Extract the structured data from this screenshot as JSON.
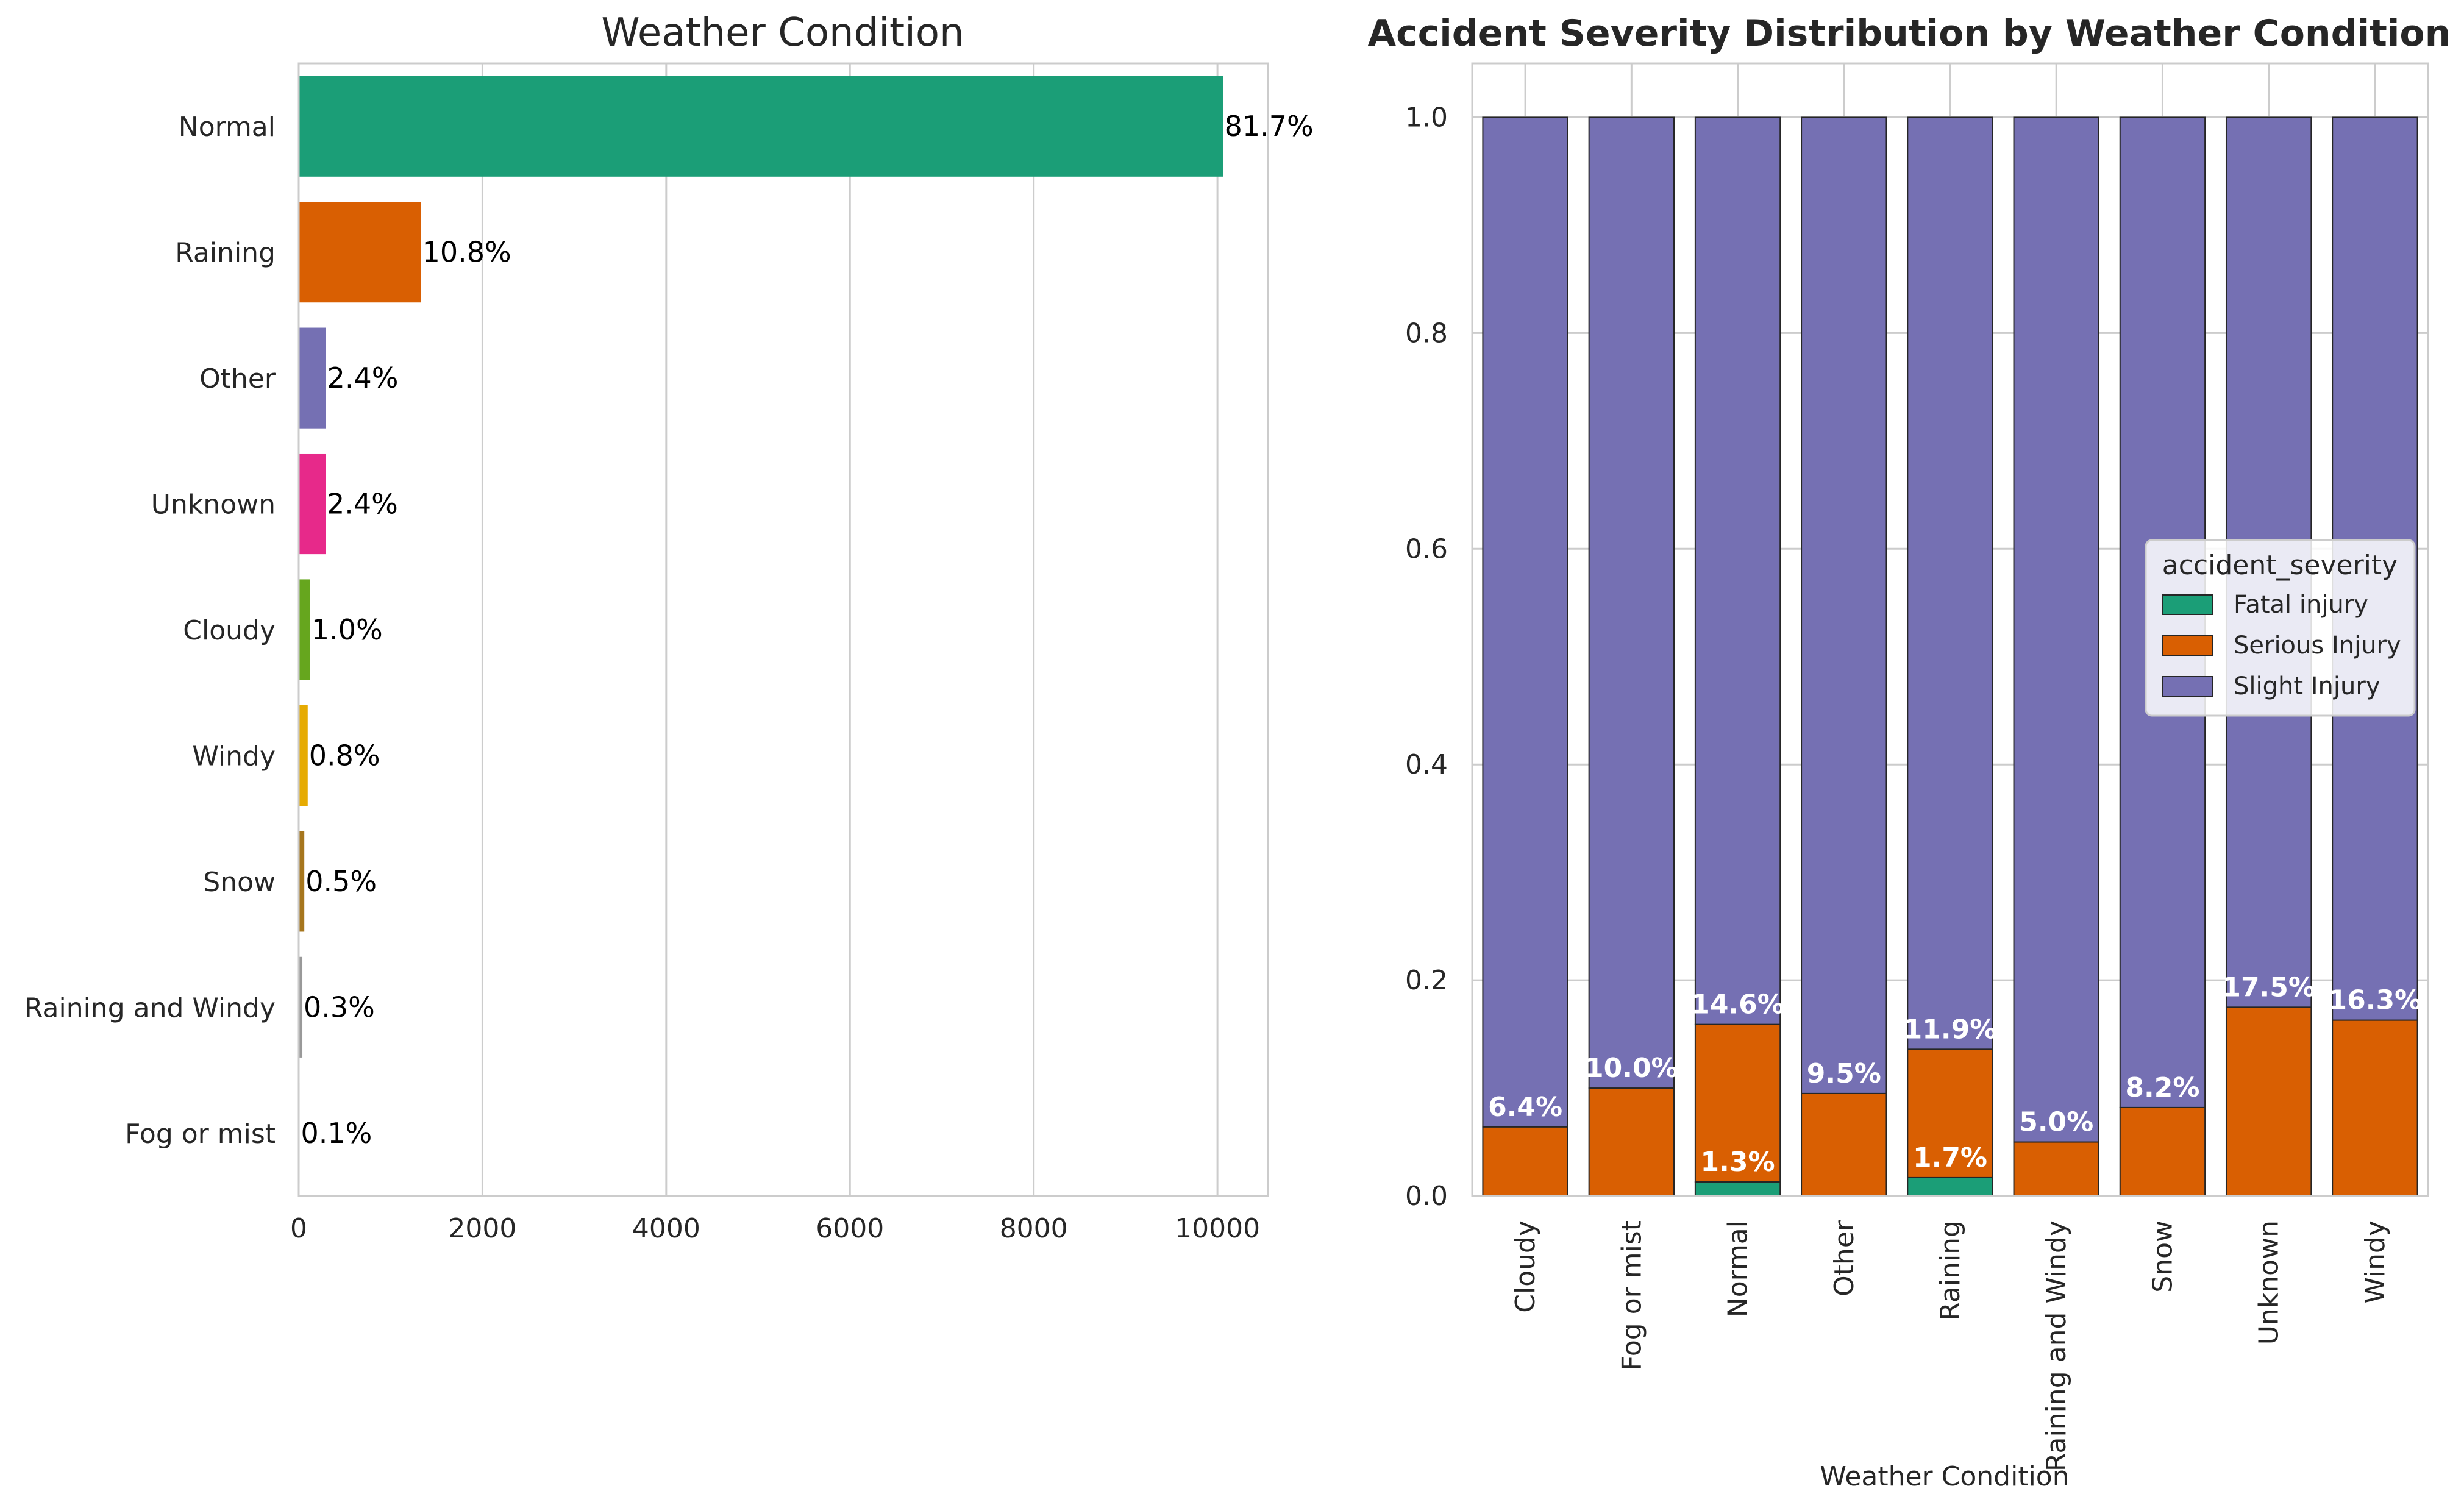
{
  "chart_data": [
    {
      "type": "bar",
      "orientation": "horizontal",
      "title": "Weather Condition",
      "categories": [
        "Normal",
        "Raining",
        "Other",
        "Unknown",
        "Cloudy",
        "Windy",
        "Snow",
        "Raining and Windy",
        "Fog or mist"
      ],
      "values": [
        10063,
        1331,
        296,
        292,
        125,
        98,
        61,
        40,
        10
      ],
      "value_labels": [
        "81.7%",
        "10.8%",
        "2.4%",
        "2.4%",
        "1.0%",
        "0.8%",
        "0.5%",
        "0.3%",
        "0.1%"
      ],
      "colors": [
        "#1b9e77",
        "#d95f02",
        "#7570b3",
        "#e7298a",
        "#66a61e",
        "#e6ab02",
        "#a6761d",
        "#999999",
        "#666666"
      ],
      "xticks": [
        "0",
        "2000",
        "4000",
        "6000",
        "8000",
        "10000"
      ],
      "xlim": [
        0,
        10550
      ],
      "xlabel": "",
      "ylabel": "",
      "grid": true
    },
    {
      "type": "bar",
      "stacked": true,
      "title": "Accident Severity Distribution by Weather Condition",
      "categories": [
        "Cloudy",
        "Fog or mist",
        "Normal",
        "Other",
        "Raining",
        "Raining and Windy",
        "Snow",
        "Unknown",
        "Windy"
      ],
      "series": [
        {
          "name": "Fatal injury",
          "color": "#1b9e77",
          "values": [
            0.0,
            0.0,
            0.013,
            0.0,
            0.017,
            0.0,
            0.0,
            0.0,
            0.0
          ]
        },
        {
          "name": "Serious Injury",
          "color": "#d95f02",
          "values": [
            0.064,
            0.1,
            0.146,
            0.095,
            0.119,
            0.05,
            0.082,
            0.175,
            0.163
          ]
        },
        {
          "name": "Slight Injury",
          "color": "#7570b3",
          "values": [
            0.936,
            0.9,
            0.841,
            0.905,
            0.864,
            0.95,
            0.918,
            0.825,
            0.837
          ]
        }
      ],
      "segment_labels": [
        {
          "category": "Normal",
          "series": "Fatal injury",
          "text": "1.3%"
        },
        {
          "category": "Raining",
          "series": "Fatal injury",
          "text": "1.7%"
        },
        {
          "category": "Cloudy",
          "series": "Serious Injury",
          "text": "6.4%"
        },
        {
          "category": "Fog or mist",
          "series": "Serious Injury",
          "text": "10.0%"
        },
        {
          "category": "Normal",
          "series": "Serious Injury",
          "text": "14.6%"
        },
        {
          "category": "Other",
          "series": "Serious Injury",
          "text": "9.5%"
        },
        {
          "category": "Raining",
          "series": "Serious Injury",
          "text": "11.9%"
        },
        {
          "category": "Raining and Windy",
          "series": "Serious Injury",
          "text": "5.0%"
        },
        {
          "category": "Snow",
          "series": "Serious Injury",
          "text": "8.2%"
        },
        {
          "category": "Unknown",
          "series": "Serious Injury",
          "text": "17.5%"
        },
        {
          "category": "Windy",
          "series": "Serious Injury",
          "text": "16.3%"
        }
      ],
      "yticks": [
        "0.0",
        "0.2",
        "0.4",
        "0.6",
        "0.8",
        "1.0"
      ],
      "ylim": [
        0,
        1.05
      ],
      "xlabel": "Weather Condition",
      "ylabel": "",
      "legend": {
        "title": "accident_severity",
        "placement": "center-right"
      },
      "grid": true
    }
  ]
}
